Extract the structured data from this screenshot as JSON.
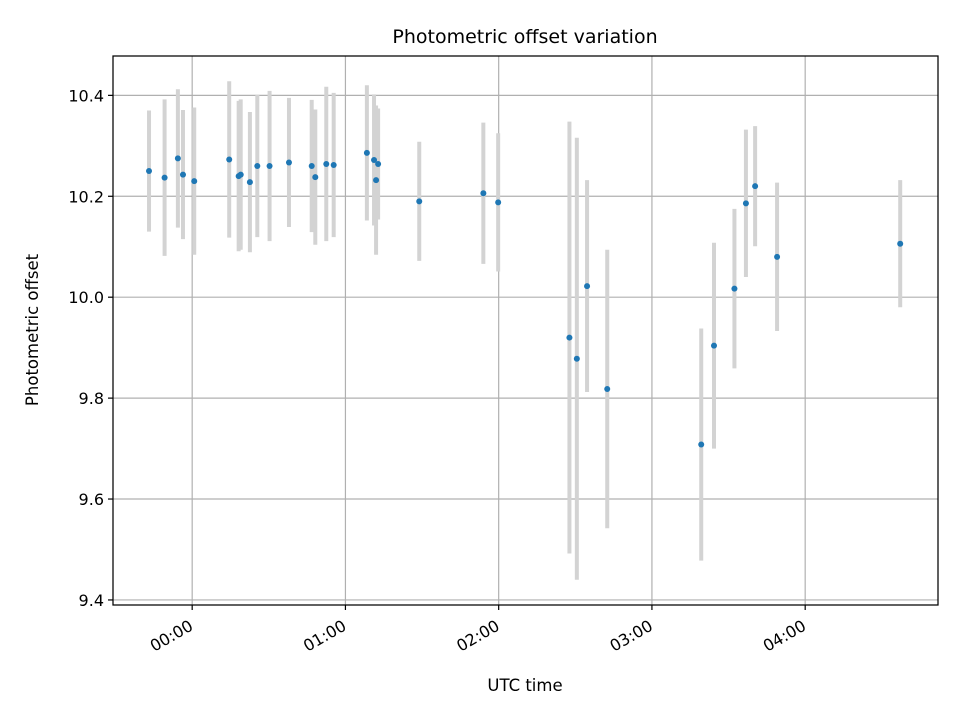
{
  "chart_data": {
    "type": "scatter",
    "title": "Photometric offset variation",
    "xlabel": "UTC time",
    "ylabel": "Photometric offset",
    "grid": true,
    "xlim_minutes": [
      -31,
      292
    ],
    "ylim": [
      9.39,
      10.478
    ],
    "yticks": [
      9.4,
      9.6,
      9.8,
      10.0,
      10.2,
      10.4
    ],
    "ytick_labels": [
      "9.4",
      "9.6",
      "9.8",
      "10.0",
      "10.2",
      "10.4"
    ],
    "xticks_minutes": [
      0,
      60,
      120,
      180,
      240
    ],
    "xtick_labels": [
      "00:00",
      "01:00",
      "02:00",
      "03:00",
      "04:00"
    ],
    "colors": {
      "points": "#1f77b4",
      "errorbars": "#d3d3d3",
      "grid": "#b0b0b0",
      "axes": "#000000"
    },
    "points": [
      {
        "time_min": -16.9,
        "y": 10.25,
        "err": 0.12
      },
      {
        "time_min": -10.8,
        "y": 10.237,
        "err": 0.155
      },
      {
        "time_min": -5.6,
        "y": 10.275,
        "err": 0.137
      },
      {
        "time_min": -3.6,
        "y": 10.243,
        "err": 0.128
      },
      {
        "time_min": 0.8,
        "y": 10.23,
        "err": 0.146
      },
      {
        "time_min": 14.5,
        "y": 10.273,
        "err": 0.155
      },
      {
        "time_min": 18.2,
        "y": 10.24,
        "err": 0.149
      },
      {
        "time_min": 19.0,
        "y": 10.243,
        "err": 0.149
      },
      {
        "time_min": 22.6,
        "y": 10.228,
        "err": 0.139
      },
      {
        "time_min": 25.5,
        "y": 10.26,
        "err": 0.141
      },
      {
        "time_min": 30.3,
        "y": 10.26,
        "err": 0.149
      },
      {
        "time_min": 37.9,
        "y": 10.267,
        "err": 0.128
      },
      {
        "time_min": 46.8,
        "y": 10.26,
        "err": 0.131
      },
      {
        "time_min": 48.2,
        "y": 10.238,
        "err": 0.134
      },
      {
        "time_min": 52.5,
        "y": 10.264,
        "err": 0.153
      },
      {
        "time_min": 55.4,
        "y": 10.262,
        "err": 0.143
      },
      {
        "time_min": 68.4,
        "y": 10.286,
        "err": 0.134
      },
      {
        "time_min": 71.2,
        "y": 10.272,
        "err": 0.13
      },
      {
        "time_min": 72.0,
        "y": 10.232,
        "err": 0.148
      },
      {
        "time_min": 72.8,
        "y": 10.264,
        "err": 0.11
      },
      {
        "time_min": 88.9,
        "y": 10.19,
        "err": 0.118
      },
      {
        "time_min": 114.0,
        "y": 10.206,
        "err": 0.14
      },
      {
        "time_min": 119.8,
        "y": 10.188,
        "err": 0.137
      },
      {
        "time_min": 147.7,
        "y": 9.92,
        "err": 0.428
      },
      {
        "time_min": 150.6,
        "y": 9.878,
        "err": 0.438
      },
      {
        "time_min": 154.6,
        "y": 10.022,
        "err": 0.21
      },
      {
        "time_min": 162.5,
        "y": 9.818,
        "err": 0.276
      },
      {
        "time_min": 199.3,
        "y": 9.708,
        "err": 0.23
      },
      {
        "time_min": 204.3,
        "y": 9.904,
        "err": 0.204
      },
      {
        "time_min": 212.3,
        "y": 10.017,
        "err": 0.158
      },
      {
        "time_min": 216.8,
        "y": 10.186,
        "err": 0.146
      },
      {
        "time_min": 220.4,
        "y": 10.22,
        "err": 0.119
      },
      {
        "time_min": 229.0,
        "y": 10.08,
        "err": 0.147
      },
      {
        "time_min": 277.2,
        "y": 10.106,
        "err": 0.126
      }
    ]
  }
}
